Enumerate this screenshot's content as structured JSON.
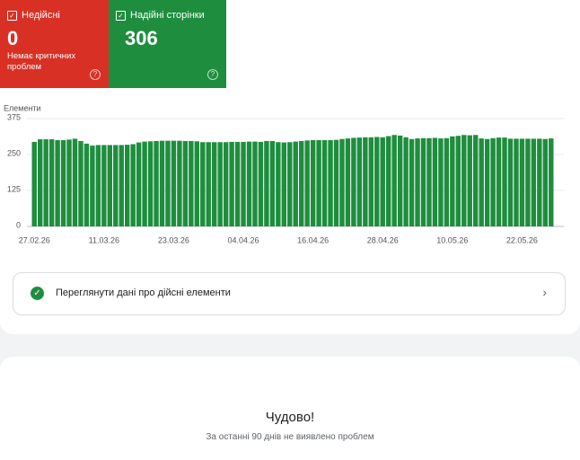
{
  "cards": [
    {
      "title": "Недійсні",
      "value": 0,
      "subtitle": "Немає критичних проблем"
    },
    {
      "title": "Надійні сторінки",
      "value": 306
    }
  ],
  "chart_data": {
    "type": "bar",
    "y_label": "Елементи",
    "color": "#1e8e3e",
    "ylim": [
      0,
      375
    ],
    "yticks": [
      0,
      125,
      250,
      375
    ],
    "grid": true,
    "categories": [
      "27.02.26",
      null,
      null,
      null,
      null,
      null,
      null,
      null,
      null,
      null,
      null,
      null,
      "11.03.26",
      null,
      null,
      null,
      null,
      null,
      null,
      null,
      null,
      null,
      null,
      null,
      "23.03.26",
      null,
      null,
      null,
      null,
      null,
      null,
      null,
      null,
      null,
      null,
      null,
      "04.04.26",
      null,
      null,
      null,
      null,
      null,
      null,
      null,
      null,
      null,
      null,
      null,
      "16.04.26",
      null,
      null,
      null,
      null,
      null,
      null,
      null,
      null,
      null,
      null,
      null,
      "28.04.26",
      null,
      null,
      null,
      null,
      null,
      null,
      null,
      null,
      null,
      null,
      null,
      "10.05.26",
      null,
      null,
      null,
      null,
      null,
      null,
      null,
      null,
      null,
      null,
      null,
      "22.05.26",
      null,
      null,
      null,
      null,
      null
    ],
    "values": [
      294,
      303,
      303,
      303,
      300,
      300,
      302,
      305,
      297,
      288,
      281,
      283,
      283,
      283,
      283,
      283,
      284,
      286,
      292,
      295,
      296,
      297,
      298,
      298,
      298,
      298,
      297,
      297,
      296,
      293,
      293,
      293,
      293,
      293,
      294,
      294,
      294,
      295,
      295,
      294,
      297,
      297,
      293,
      292,
      293,
      295,
      297,
      299,
      300,
      300,
      300,
      300,
      301,
      304,
      306,
      308,
      309,
      310,
      310,
      311,
      310,
      314,
      318,
      316,
      310,
      304,
      306,
      307,
      307,
      308,
      306,
      307,
      313,
      315,
      318,
      317,
      318,
      306,
      304,
      307,
      309,
      309,
      305,
      305,
      305,
      305,
      305,
      305,
      304,
      306
    ]
  },
  "link": {
    "label": "Переглянути дані про дійсні елементи"
  },
  "status": {
    "title": "Чудово!",
    "message": "За останні 90 днів не виявлено проблем"
  }
}
